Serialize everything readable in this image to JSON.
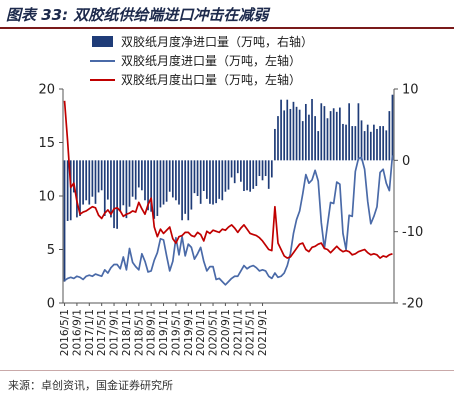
{
  "title": "图表 33: 双胶纸供给端进口冲击在减弱",
  "source": "来源：卓创资讯，国金证券研究所",
  "chart_data": {
    "type": "bar+line",
    "title": "图表 33: 双胶纸供给端进口冲击在减弱",
    "x_tick_labels": [
      "2016/5/1",
      "2016/9/1",
      "2017/1/1",
      "2017/5/1",
      "2017/9/1",
      "2018/1/1",
      "2018/5/1",
      "2018/9/1",
      "2019/1/1",
      "2019/5/1",
      "2019/9/1",
      "2020/1/1",
      "2020/5/1",
      "2020/9/1",
      "2021/1/1",
      "2021/5/1",
      "2021/9/1"
    ],
    "start_month": "2016/5",
    "frequency": "monthly",
    "y_left": {
      "ylim": [
        0,
        20
      ],
      "ticks": [
        0,
        5,
        10,
        15,
        20
      ]
    },
    "y_right": {
      "ylim": [
        -20,
        10
      ],
      "ticks": [
        -20,
        -10,
        0,
        10
      ]
    },
    "colors": {
      "net_import": "#1f3c78",
      "import": "#4a6aa8",
      "export": "#c00000"
    },
    "series": [
      {
        "name": "双胶纸月度净进口量（万吨，右轴）",
        "kind": "bar",
        "axis": "right",
        "values": [
          -17.0,
          -8.5,
          -8.4,
          -4.5,
          -8.0,
          -7.8,
          -6.2,
          -5.6,
          -6.2,
          -5.1,
          -6.1,
          -4.5,
          -4.2,
          -7.8,
          -5.5,
          -8.0,
          -9.5,
          -9.6,
          -7.2,
          -6.3,
          -8.1,
          -6.5,
          -5.1,
          -5.5,
          -3.8,
          -4.2,
          -5.6,
          -7.0,
          -7.2,
          -8.2,
          -7.8,
          -6.6,
          -6.2,
          -5.8,
          -4.4,
          -5.2,
          -5.6,
          -6.2,
          -8.4,
          -7.5,
          -8.4,
          -6.9,
          -4.6,
          -5.0,
          -6.1,
          -4.3,
          -5.4,
          -6.1,
          -6.2,
          -6.0,
          -5.4,
          -5.6,
          -4.4,
          -4.1,
          -2.4,
          -3.2,
          -1.8,
          -3.0,
          -4.3,
          -4.2,
          -4.4,
          -4.0,
          -3.6,
          -2.2,
          -2.8,
          -2.2,
          -4.0,
          -2.4,
          4.4,
          6.2,
          8.5,
          7.0,
          8.5,
          7.2,
          8.2,
          7.5,
          7.1,
          5.5,
          7.9,
          6.4,
          8.6,
          6.2,
          4.1,
          8.0,
          7.6,
          5.9,
          6.9,
          7.3,
          6.8,
          7.4,
          5.1,
          5.0,
          8.0,
          4.8,
          4.8,
          8.0,
          5.6,
          4.1,
          5.0,
          4.0,
          5.0,
          4.4,
          4.8,
          4.8,
          4.2,
          6.9,
          9.2
        ]
      },
      {
        "name": "双胶纸月度进口量（万吨，左轴）",
        "kind": "line",
        "axis": "left",
        "values": [
          2.1,
          2.3,
          2.4,
          2.3,
          2.5,
          2.4,
          2.2,
          2.5,
          2.6,
          2.5,
          2.7,
          2.6,
          2.5,
          3.1,
          2.8,
          3.3,
          3.6,
          3.6,
          3.2,
          4.3,
          3.1,
          5.1,
          3.8,
          3.4,
          3.1,
          4.6,
          3.9,
          2.9,
          3.0,
          4.0,
          4.7,
          6.0,
          5.9,
          4.4,
          3.0,
          3.9,
          6.1,
          4.5,
          6.2,
          4.4,
          5.5,
          5.2,
          4.1,
          4.6,
          5.2,
          3.9,
          3.0,
          3.4,
          3.4,
          2.2,
          2.3,
          2.0,
          1.7,
          2.0,
          2.3,
          2.5,
          2.5,
          3.0,
          3.5,
          3.2,
          3.4,
          3.5,
          3.3,
          3.0,
          3.1,
          3.0,
          2.5,
          2.3,
          2.8,
          2.4,
          2.5,
          2.8,
          3.5,
          4.6,
          6.5,
          7.8,
          8.6,
          10.2,
          12.0,
          11.2,
          11.5,
          12.4,
          11.4,
          7.5,
          5.1,
          7.3,
          9.4,
          9.3,
          11.3,
          11.1,
          6.5,
          5.0,
          8.2,
          8.1,
          12.3,
          13.5,
          13.6,
          12.5,
          9.5,
          7.4,
          8.1,
          9.0,
          12.2,
          12.5,
          11.2,
          10.5,
          13.8
        ]
      },
      {
        "name": "双胶纸月度出口量（万吨，左轴）",
        "kind": "line",
        "axis": "left",
        "values": [
          18.9,
          15.1,
          10.8,
          11.2,
          9.5,
          8.3,
          8.5,
          8.6,
          8.8,
          9.0,
          8.9,
          8.2,
          7.9,
          8.4,
          8.7,
          8.3,
          8.8,
          8.9,
          8.6,
          8.1,
          8.3,
          8.4,
          8.6,
          8.5,
          9.4,
          8.8,
          8.3,
          9.2,
          9.8,
          7.1,
          6.2,
          6.9,
          6.5,
          6.8,
          7.1,
          6.0,
          5.6,
          6.2,
          6.3,
          6.6,
          6.6,
          6.3,
          6.2,
          6.6,
          6.4,
          5.8,
          6.7,
          6.5,
          6.8,
          6.7,
          6.6,
          6.9,
          6.8,
          7.1,
          7.3,
          7.0,
          6.6,
          7.0,
          7.3,
          6.9,
          6.5,
          6.4,
          6.3,
          6.1,
          5.8,
          5.4,
          5.0,
          4.9,
          9.0,
          5.6,
          5.0,
          4.4,
          4.2,
          4.3,
          4.7,
          5.1,
          5.5,
          5.6,
          5.0,
          4.8,
          5.2,
          5.3,
          5.5,
          5.6,
          5.1,
          5.0,
          4.7,
          5.0,
          5.3,
          5.0,
          4.8,
          4.9,
          4.8,
          4.5,
          4.6,
          4.8,
          4.9,
          5.0,
          4.7,
          4.5,
          4.6,
          4.5,
          4.2,
          4.4,
          4.3,
          4.5,
          4.6
        ]
      }
    ],
    "legend": {
      "placement": "top-center",
      "inside": true
    },
    "grid": false
  }
}
